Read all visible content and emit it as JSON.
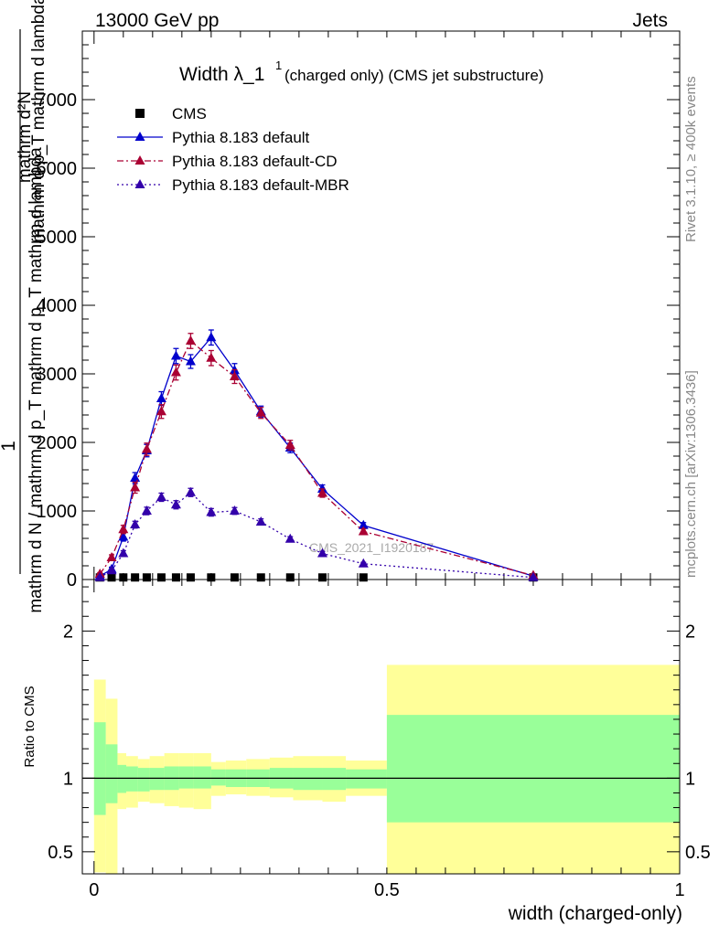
{
  "header": {
    "energy_label": "13000 GeV pp",
    "category_label": "Jets",
    "side_rivet": "Rivet 3.1.10, ≥ 400k events",
    "side_mcplots": "mcplots.cern.ch [arXiv:1306.3436]",
    "watermark": "CMS_2021_I1920187"
  },
  "main_plot": {
    "title_main": "Width λ_1",
    "title_sup": "1",
    "title_rest": "(charged only) (CMS jet substructure)",
    "ylabel_one": "1",
    "ylabel_left_den": "mathrm d N / mathrm d p_T mathrm d p_T mathrm d lambda",
    "ylabel_left_num": "mathrm d²N",
    "ylabel_right": "mathrm d p_T mathrm d lambda"
  },
  "legend": {
    "items": [
      {
        "label": "CMS",
        "color": "#000000",
        "style": "marker-square"
      },
      {
        "label": "Pythia 8.183 default",
        "color": "#0000cc",
        "style": "solid"
      },
      {
        "label": "Pythia 8.183 default-CD",
        "color": "#aa0033",
        "style": "dashdot"
      },
      {
        "label": "Pythia 8.183 default-MBR",
        "color": "#3300aa",
        "style": "dotted"
      }
    ]
  },
  "ratio_plot": {
    "ylabel": "Ratio to CMS",
    "xlabel": "width (charged-only)"
  },
  "chart_data": [
    {
      "type": "line",
      "title": "Width λ_1^1 (charged only) (CMS jet substructure)",
      "xlabel": "width (charged-only)",
      "ylabel": "1/N dN/dp_T dp_T dλ",
      "xlim": [
        -0.02,
        1.0
      ],
      "ylim": [
        0,
        8000
      ],
      "yticks": [
        0,
        1000,
        2000,
        3000,
        4000,
        5000,
        6000,
        7000
      ],
      "x": [
        0.01,
        0.03,
        0.05,
        0.07,
        0.09,
        0.115,
        0.14,
        0.165,
        0.2,
        0.24,
        0.285,
        0.335,
        0.39,
        0.46,
        0.75
      ],
      "series": [
        {
          "name": "CMS",
          "values": [
            30,
            30,
            30,
            30,
            30,
            30,
            30,
            30,
            30,
            30,
            30,
            30,
            30,
            30,
            30
          ]
        },
        {
          "name": "Pythia 8.183 default",
          "values": [
            50,
            150,
            620,
            1480,
            1880,
            2640,
            3260,
            3180,
            3530,
            3050,
            2450,
            1920,
            1320,
            790,
            50
          ],
          "errors": [
            20,
            30,
            60,
            80,
            90,
            100,
            110,
            100,
            110,
            100,
            80,
            70,
            60,
            40,
            10
          ]
        },
        {
          "name": "Pythia 8.183 default-CD",
          "values": [
            80,
            320,
            730,
            1340,
            1900,
            2450,
            3020,
            3480,
            3230,
            2960,
            2430,
            1960,
            1260,
            700,
            60
          ],
          "errors": [
            20,
            40,
            60,
            80,
            90,
            100,
            110,
            110,
            110,
            100,
            80,
            70,
            60,
            40,
            10
          ]
        },
        {
          "name": "Pythia 8.183 default-MBR",
          "values": [
            30,
            130,
            380,
            800,
            1000,
            1200,
            1090,
            1270,
            980,
            1000,
            840,
            590,
            380,
            230,
            30
          ],
          "errors": [
            15,
            25,
            40,
            50,
            55,
            60,
            60,
            60,
            55,
            50,
            45,
            35,
            30,
            20,
            8
          ]
        }
      ]
    },
    {
      "type": "area",
      "title": "Ratio to CMS",
      "xlabel": "width (charged-only)",
      "ylabel": "Ratio to CMS",
      "xlim": [
        -0.02,
        1.0
      ],
      "ylim": [
        0.35,
        2.35
      ],
      "xticks": [
        0,
        0.5,
        1
      ],
      "yticks": [
        0.5,
        1,
        2
      ],
      "bin_edges": [
        0.0,
        0.02,
        0.04,
        0.055,
        0.075,
        0.095,
        0.12,
        0.145,
        0.17,
        0.2,
        0.225,
        0.26,
        0.3,
        0.34,
        0.39,
        0.43,
        0.5,
        1.0
      ],
      "series": [
        {
          "name": "CMS stat uncertainty",
          "lower": [
            0.75,
            0.83,
            0.9,
            0.91,
            0.91,
            0.92,
            0.92,
            0.93,
            0.93,
            0.95,
            0.94,
            0.94,
            0.93,
            0.92,
            0.92,
            0.93,
            0.7
          ],
          "upper": [
            1.38,
            1.23,
            1.09,
            1.08,
            1.07,
            1.07,
            1.08,
            1.08,
            1.08,
            1.06,
            1.06,
            1.06,
            1.07,
            1.07,
            1.07,
            1.06,
            1.43
          ]
        },
        {
          "name": "CMS total uncertainty",
          "lower": [
            0.36,
            0.35,
            0.79,
            0.8,
            0.84,
            0.83,
            0.81,
            0.8,
            0.79,
            0.88,
            0.89,
            0.88,
            0.87,
            0.85,
            0.84,
            0.88,
            0.35
          ],
          "upper": [
            1.67,
            1.54,
            1.17,
            1.15,
            1.13,
            1.15,
            1.17,
            1.17,
            1.17,
            1.11,
            1.12,
            1.13,
            1.14,
            1.15,
            1.15,
            1.12,
            1.77
          ]
        }
      ]
    }
  ]
}
